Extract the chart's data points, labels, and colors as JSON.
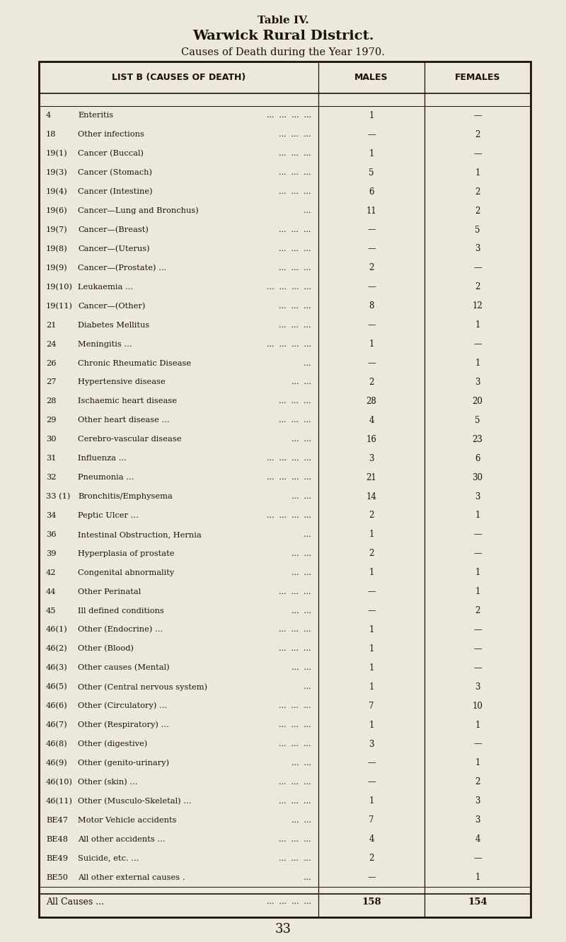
{
  "title1": "Table IV.",
  "title2": "Warwick Rural District.",
  "title3": "Causes of Death during the Year 1970.",
  "col_headers": [
    "LIST B (CAUSES OF DEATH)",
    "MALES",
    "FEMALES"
  ],
  "rows": [
    [
      "4",
      "Enteritis",
      "...  ...  ...  ...",
      "1",
      "—"
    ],
    [
      "18",
      "Other infections",
      "...  ...  ...",
      "—",
      "2"
    ],
    [
      "19(1)",
      "Cancer (Buccal)",
      "...  ...  ...",
      "1",
      "—"
    ],
    [
      "19(3)",
      "Cancer (Stomach)",
      "...  ...  ...",
      "5",
      "1"
    ],
    [
      "19(4)",
      "Cancer (Intestine)",
      "...  ...  ...",
      "6",
      "2"
    ],
    [
      "19(6)",
      "Cancer—Lung and Bronchus)",
      "...",
      "11",
      "2"
    ],
    [
      "19(7)",
      "Cancer—(Breast)",
      "...  ...  ...",
      "—",
      "5"
    ],
    [
      "19(8)",
      "Cancer—(Uterus)",
      "...  ...  ...",
      "—",
      "3"
    ],
    [
      "19(9)",
      "Cancer—(Prostate) ...",
      "...  ...  ...",
      "2",
      "—"
    ],
    [
      "19(10)",
      "Leukaemia ...",
      "...  ...  ...  ...",
      "—",
      "2"
    ],
    [
      "19(11)",
      "Cancer—(Other)",
      "...  ...  ...",
      "8",
      "12"
    ],
    [
      "21",
      "Diabetes Mellitus",
      "...  ...  ...",
      "—",
      "1"
    ],
    [
      "24",
      "Meningitis ...",
      "...  ...  ...  ...",
      "1",
      "—"
    ],
    [
      "26",
      "Chronic Rheumatic Disease",
      "...",
      "—",
      "1"
    ],
    [
      "27",
      "Hypertensive disease",
      "...  ...",
      "2",
      "3"
    ],
    [
      "28",
      "Ischaemic heart disease",
      "...  ...  ...",
      "28",
      "20"
    ],
    [
      "29",
      "Other heart disease ...",
      "...  ...  ...",
      "4",
      "5"
    ],
    [
      "30",
      "Cerebro-vascular disease",
      "...  ...",
      "16",
      "23"
    ],
    [
      "31",
      "Influenza ...",
      "...  ...  ...  ...",
      "3",
      "6"
    ],
    [
      "32",
      "Pneumonia ...",
      "...  ...  ...  ...",
      "21",
      "30"
    ],
    [
      "33 (1)",
      "Bronchitis/Emphysema",
      "...  ...",
      "14",
      "3"
    ],
    [
      "34",
      "Peptic Ulcer ...",
      "...  ...  ...  ...",
      "2",
      "1"
    ],
    [
      "36",
      "Intestinal Obstruction, Hernia",
      "...",
      "1",
      "—"
    ],
    [
      "39",
      "Hyperplasia of prostate",
      "...  ...",
      "2",
      "—"
    ],
    [
      "42",
      "Congenital abnormality",
      "...  ...",
      "1",
      "1"
    ],
    [
      "44",
      "Other Perinatal",
      "...  ...  ...",
      "—",
      "1"
    ],
    [
      "45",
      "Ill defined conditions",
      "...  ...",
      "—",
      "2"
    ],
    [
      "46(1)",
      "Other (Endocrine) ...",
      "...  ...  ...",
      "1",
      "—"
    ],
    [
      "46(2)",
      "Other (Blood)",
      "...  ...  ...",
      "1",
      "—"
    ],
    [
      "46(3)",
      "Other causes (Mental)",
      "...  ...",
      "1",
      "—"
    ],
    [
      "46(5)",
      "Other (Central nervous system)",
      "...",
      "1",
      "3"
    ],
    [
      "46(6)",
      "Other (Circulatory) ...",
      "...  ...  ...",
      "7",
      "10"
    ],
    [
      "46(7)",
      "Other (Respiratory) ...",
      "...  ...  ...",
      "1",
      "1"
    ],
    [
      "46(8)",
      "Other (digestive)",
      "...  ...  ...",
      "3",
      "—"
    ],
    [
      "46(9)",
      "Other (genito-urinary)",
      "...  ...",
      "—",
      "1"
    ],
    [
      "46(10)",
      "Other (skin) ...",
      "...  ...  ...",
      "—",
      "2"
    ],
    [
      "46(11)",
      "Other (Musculo-Skeletal) ...",
      "...  ...  ...",
      "1",
      "3"
    ],
    [
      "BE47",
      "Motor Vehicle accidents",
      "...  ...",
      "7",
      "3"
    ],
    [
      "BE48",
      "All other accidents ...",
      "...  ...  ...",
      "4",
      "4"
    ],
    [
      "BE49",
      "Suicide, etc. ...",
      "...  ...  ...",
      "2",
      "—"
    ],
    [
      "BE50",
      "All other external causes .",
      "...",
      "—",
      "1"
    ]
  ],
  "footer_label": "All Causes ...",
  "footer_dots": "...  ...  ...  ...",
  "footer_males": "158",
  "footer_females": "154",
  "page_number": "33",
  "bg_color": "#ede8dc",
  "text_color": "#1a1008",
  "table_line_color": "#1a1008"
}
